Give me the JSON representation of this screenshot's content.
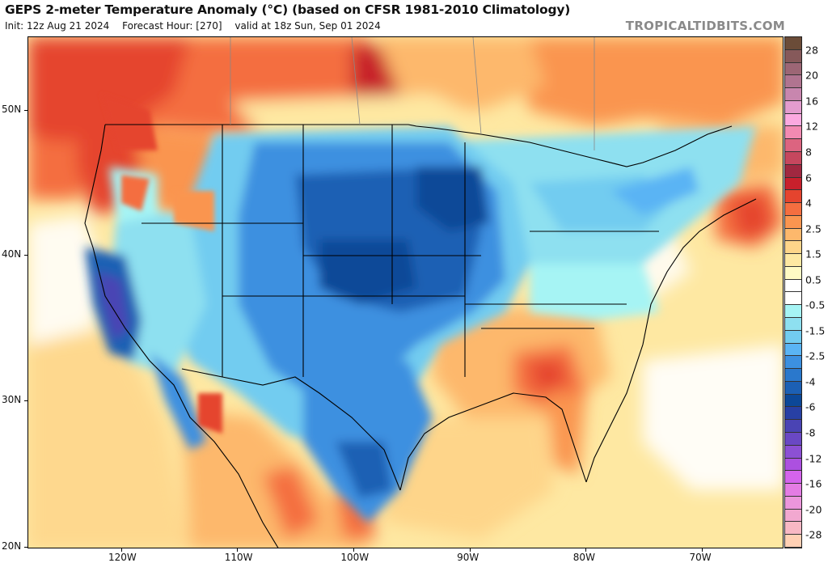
{
  "header": {
    "title": "GEPS 2-meter Temperature Anomaly (°C) (based on CFSR 1981-2010 Climatology)",
    "init": "Init: 12z Aug 21 2024",
    "forecast_hour": "Forecast Hour: [270]",
    "valid": "valid at 18z Sun, Sep 01 2024",
    "brand": "TROPICALTIDBITS.COM"
  },
  "map": {
    "variable": "2-meter Temperature Anomaly",
    "units": "°C",
    "lat_ticks": [
      {
        "label": "50N",
        "value": 50
      },
      {
        "label": "40N",
        "value": 40
      },
      {
        "label": "30N",
        "value": 30
      },
      {
        "label": "20N",
        "value": 20
      }
    ],
    "lon_ticks": [
      {
        "label": "120W",
        "value": -120
      },
      {
        "label": "110W",
        "value": -110
      },
      {
        "label": "100W",
        "value": -100
      },
      {
        "label": "90W",
        "value": -90
      },
      {
        "label": "80W",
        "value": -80
      },
      {
        "label": "70W",
        "value": -70
      }
    ]
  },
  "colorbar": {
    "labels": [
      "28",
      "20",
      "16",
      "12",
      "8",
      "6",
      "4",
      "2.5",
      "1.5",
      "0.5",
      "-0.5",
      "-1.5",
      "-2.5",
      "-4",
      "-6",
      "-8",
      "-12",
      "-16",
      "-20",
      "-28"
    ],
    "colors": [
      "#6b4c38",
      "#86595a",
      "#9c6675",
      "#b07490",
      "#c886ae",
      "#e39cce",
      "#fba9e0",
      "#f28ab2",
      "#dc6480",
      "#c6475e",
      "#a02840",
      "#c8202c",
      "#e5442e",
      "#f46e40",
      "#fa9550",
      "#fdb86c",
      "#fed58a",
      "#fee8a2",
      "#fffac4",
      "#ffffff",
      "#ffffff",
      "#a6f4f4",
      "#8ee0f0",
      "#72ccf0",
      "#5ab4f4",
      "#3c90e0",
      "#2a78cc",
      "#1c60b4",
      "#0c4898",
      "#2840a4",
      "#4a44b4",
      "#6a48c4",
      "#8c50d4",
      "#ac50e0",
      "#d464ec",
      "#e47ce4",
      "#ec96dc",
      "#f2a8d0",
      "#f8b8c4",
      "#ffd0b4"
    ]
  },
  "palette": {
    "ocean_base": "#fff0b8",
    "land_warm": "#fdb86c",
    "hot": "#e5442e",
    "very_hot": "#c8202c",
    "cool": "#8ee0f0",
    "cold": "#3c90e0",
    "very_cold": "#1c60b4",
    "extreme_cold": "#4a44b4",
    "border": "#000000",
    "intl_border": "#888888"
  }
}
